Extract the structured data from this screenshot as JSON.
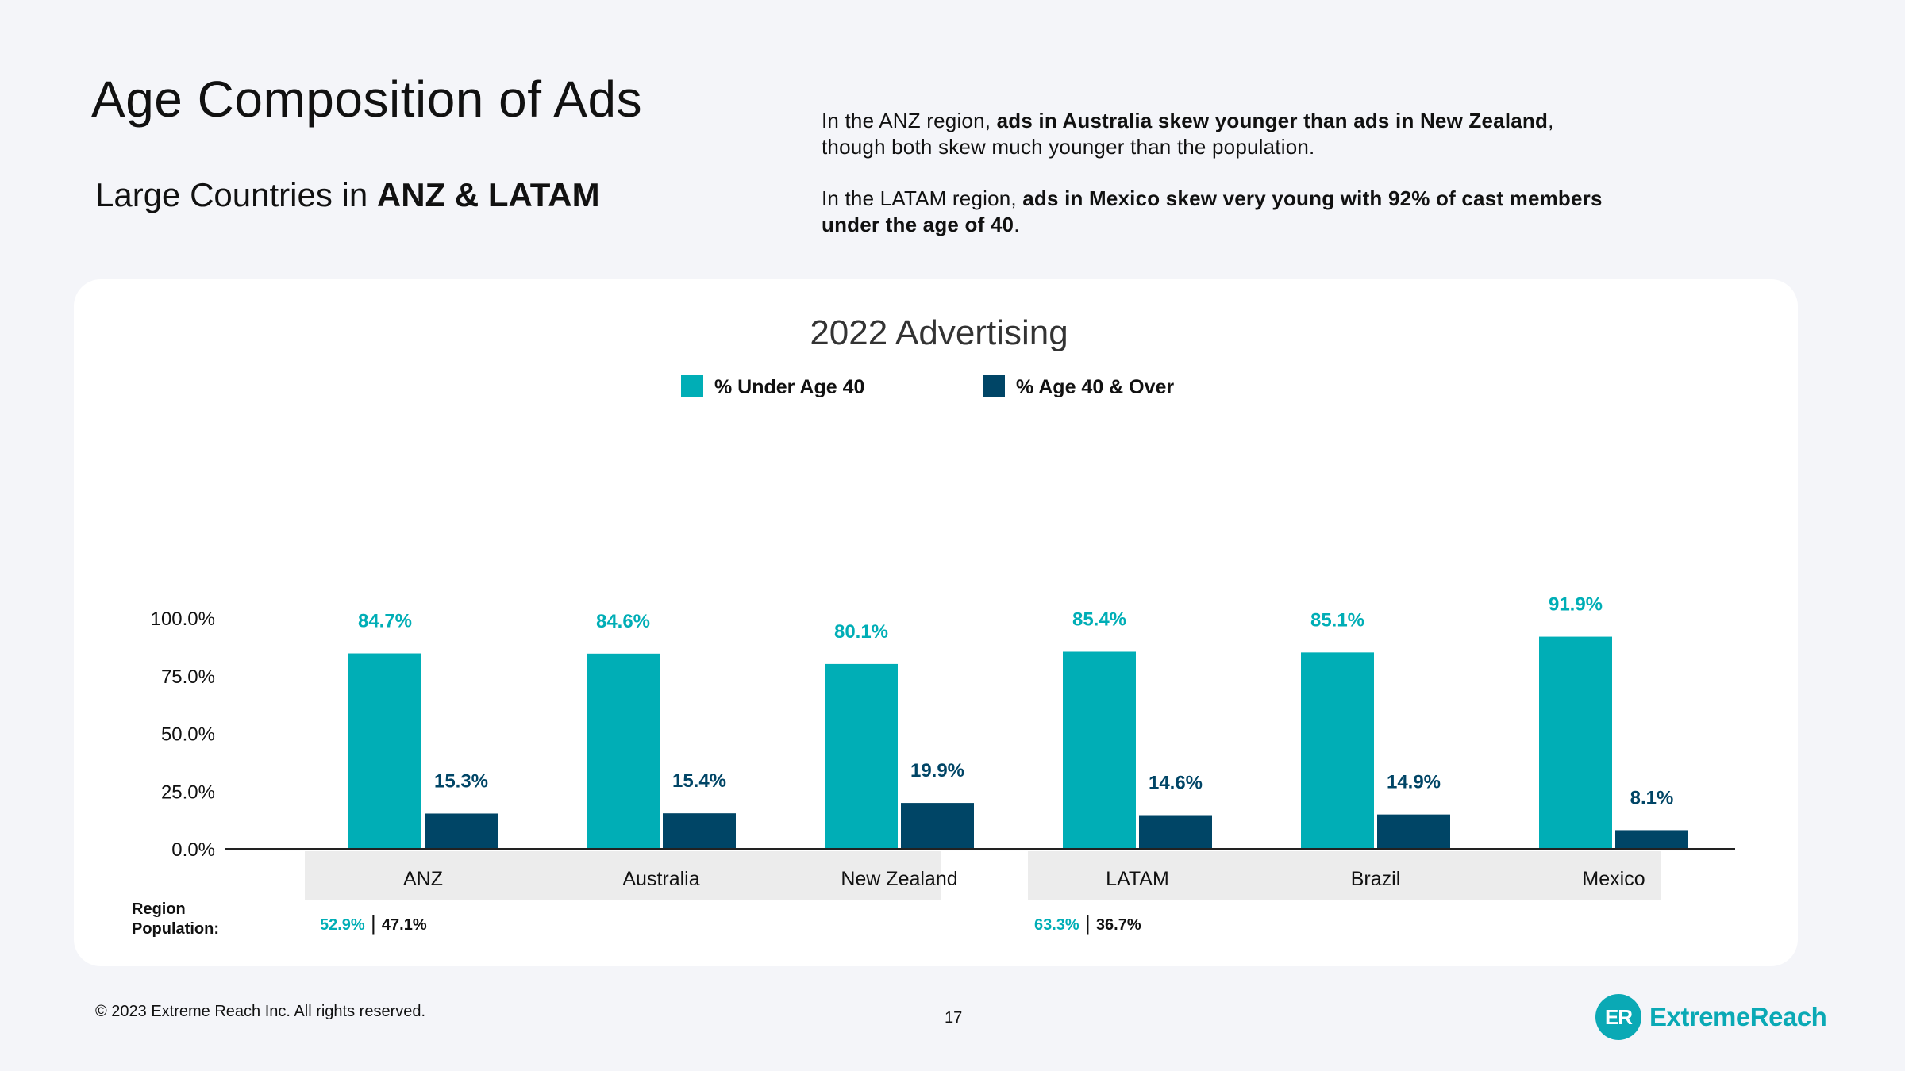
{
  "page": {
    "title": "Age Composition of Ads",
    "subtitle_prefix": "Large Countries in ",
    "subtitle_bold": "ANZ & LATAM",
    "para1": {
      "t1": "In the ANZ region, ",
      "b1": "ads in Australia skew younger than ads in New Zealand",
      "t2": ", though both skew much younger than the population."
    },
    "para2": {
      "t1": "In the LATAM region, ",
      "b1": "ads in Mexico skew very young with 92% of cast members under the age of 40",
      "t2": "."
    },
    "footer_copyright": "© 2023 Extreme Reach Inc. All rights reserved.",
    "page_number": "17",
    "logo_mark": "ER",
    "logo_text": "ExtremeReach"
  },
  "colors": {
    "under40": "#00aeb6",
    "over40": "#004566",
    "axis": "#222222",
    "category_bg": "#ececec"
  },
  "chart_data": {
    "type": "bar",
    "title": "2022 Advertising",
    "categories": [
      "ANZ",
      "Australia",
      "New Zealand",
      "LATAM",
      "Brazil",
      "Mexico"
    ],
    "series": [
      {
        "name": "% Under Age 40",
        "values": [
          84.7,
          84.6,
          80.1,
          85.4,
          85.1,
          91.9
        ],
        "labels": [
          "84.7%",
          "84.6%",
          "80.1%",
          "85.4%",
          "85.1%",
          "91.9%"
        ]
      },
      {
        "name": "%  Age 40 & Over",
        "values": [
          15.3,
          15.4,
          19.9,
          14.6,
          14.9,
          8.1
        ],
        "labels": [
          "15.3%",
          "15.4%",
          "19.9%",
          "14.6%",
          "14.9%",
          "8.1%"
        ]
      }
    ],
    "yticks": [
      "0.0%",
      "25.0%",
      "50.0%",
      "75.0%",
      "100.0%"
    ],
    "ylim": [
      0,
      100
    ],
    "xlabel": "",
    "ylabel": "",
    "legend_position": "top",
    "region_population_label": [
      "Region",
      "Population:"
    ],
    "region_population": [
      {
        "category": "ANZ",
        "under": "52.9%",
        "sep": "|",
        "over": "47.1%"
      },
      {
        "category": "LATAM",
        "under": "63.3%",
        "sep": "|",
        "over": "36.7%"
      }
    ]
  }
}
